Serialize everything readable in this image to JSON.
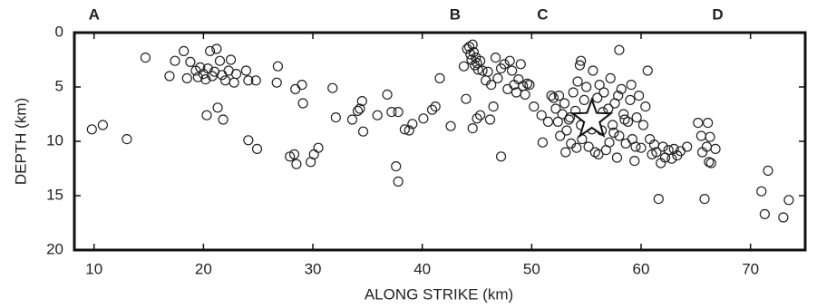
{
  "chart_data": {
    "type": "scatter",
    "xlabel": "ALONG STRIKE (km)",
    "ylabel": "DEPTH (km)",
    "xlim": [
      8.2,
      75
    ],
    "ylim": [
      0,
      20
    ],
    "y_inverted": true,
    "xticks": [
      10,
      20,
      30,
      40,
      50,
      60,
      70
    ],
    "yticks": [
      0,
      5,
      10,
      15,
      20
    ],
    "annotations": [
      {
        "text": "A",
        "x": 10
      },
      {
        "text": "B",
        "x": 43
      },
      {
        "text": "C",
        "x": 51
      },
      {
        "text": "D",
        "x": 67
      }
    ],
    "mainshock": {
      "x": 55.5,
      "y": 8
    },
    "series": [
      {
        "color": "#222222",
        "x": [
          9.8,
          10.8,
          13,
          14.7,
          16.9,
          17.4,
          18.2,
          18.5,
          18.8,
          19.3,
          19.5,
          19.7,
          20,
          20.2,
          20.4,
          20.6,
          20.8,
          21,
          21.2,
          21.5,
          21.7,
          22,
          22.3,
          22.5,
          22.8,
          23,
          20.3,
          21.3,
          21.8,
          23.9,
          24.1,
          24.1,
          24.9,
          24.8,
          26.7,
          26.8,
          27.9,
          28.3,
          28.4,
          28.5,
          29,
          29.1,
          29.8,
          30.1,
          30.5,
          31.8,
          32.1,
          33.6,
          34.1,
          34.3,
          34.5,
          34.6,
          35.9,
          36.8,
          37.2,
          37.6,
          37.8,
          37.8,
          38.4,
          38.8,
          39.1,
          40.1,
          40.9,
          41.2,
          41.6,
          42.6,
          43.8,
          44,
          44.1,
          44.3,
          44.4,
          44.5,
          44.6,
          44.7,
          44.8,
          44.9,
          45,
          45.1,
          45.3,
          45.5,
          44.6,
          45,
          45.3,
          45.8,
          46,
          46.3,
          46.5,
          46.2,
          46.7,
          46.9,
          47.2,
          47.5,
          47.8,
          48,
          48.2,
          48.4,
          48.6,
          48.8,
          49,
          49.2,
          49.4,
          49.6,
          49.8,
          47.2,
          50.2,
          51,
          51.8,
          52,
          52.2,
          52.4,
          52.6,
          52.8,
          53,
          53.2,
          53.4,
          53.6,
          53.8,
          54,
          54.2,
          54.4,
          54.5,
          54.6,
          54.8,
          55,
          55.2,
          55.4,
          55.6,
          55.8,
          56,
          56.2,
          56.4,
          56.6,
          56.8,
          57,
          57.2,
          57.4,
          57.6,
          57.8,
          58,
          58,
          58.2,
          58.4,
          58.6,
          58.8,
          59,
          59.2,
          59.4,
          59.6,
          59.8,
          60,
          60.2,
          60.4,
          60.6,
          60.8,
          61,
          61.2,
          61.4,
          61.6,
          61.8,
          62,
          62.2,
          62.5,
          62.8,
          63,
          63.3,
          63.6,
          64.2,
          52.5,
          53.5,
          54.5,
          55.5,
          56.5,
          57.5,
          58.5,
          59.5,
          53.1,
          54.1,
          56.1,
          57.1,
          51.5,
          50.9,
          59.1,
          57.9,
          65.2,
          65.5,
          65.6,
          65.8,
          66,
          66.1,
          66.3,
          66.4,
          66.8,
          66.2,
          71,
          71.3,
          71.6,
          73,
          73.5
        ],
        "values": [
          8.9,
          8.5,
          9.8,
          2.3,
          4,
          2.6,
          1.7,
          4.2,
          2.7,
          3.5,
          4.1,
          3.2,
          3.8,
          4.3,
          3.3,
          1.7,
          4,
          3.6,
          1.5,
          2.6,
          3.9,
          4.4,
          3.5,
          2.5,
          4.6,
          3.8,
          7.6,
          6.9,
          8,
          3.5,
          4.4,
          9.9,
          10.7,
          4.4,
          4.6,
          3.1,
          11.4,
          11.2,
          5.2,
          12.1,
          4.8,
          6.5,
          11.9,
          11.2,
          10.6,
          5.1,
          7.8,
          8,
          7.2,
          7,
          6.3,
          9.1,
          7.6,
          5.7,
          7.3,
          12.3,
          13.7,
          7.3,
          8.9,
          9,
          8.4,
          7.9,
          7.1,
          6.8,
          4.2,
          8.6,
          3.1,
          6.1,
          1.5,
          1.3,
          2,
          2.5,
          1.1,
          1.8,
          3,
          2.3,
          2.8,
          3.4,
          2.6,
          3.5,
          8.8,
          7.9,
          7.6,
          4.4,
          3.6,
          4.8,
          6.8,
          8,
          2.3,
          4.2,
          3.3,
          2.9,
          5.2,
          2.6,
          3.5,
          4.8,
          5.5,
          4.3,
          2.9,
          4.9,
          5.7,
          4.7,
          4.8,
          11.4,
          6.8,
          10.1,
          5.8,
          6,
          7,
          8.2,
          9.5,
          7.5,
          6.5,
          9,
          8,
          10.2,
          5.5,
          7.2,
          4.5,
          3,
          2.6,
          9.8,
          6.2,
          5,
          10.5,
          7.5,
          3.5,
          11,
          6,
          4.8,
          9,
          5.5,
          10.8,
          7,
          4.2,
          8.5,
          6.5,
          11.5,
          1.6,
          9.5,
          5.2,
          7.5,
          10.2,
          8.2,
          6.2,
          9.8,
          11.8,
          7.8,
          5.8,
          10.6,
          8.5,
          6.8,
          3.5,
          9.8,
          11.2,
          10.3,
          11,
          15.3,
          12,
          10.5,
          11.5,
          10.8,
          11.6,
          10.7,
          11.3,
          10.9,
          10.5,
          5.8,
          7.8,
          8.5,
          8.9,
          7.3,
          9.2,
          8,
          10.5,
          11,
          10.6,
          11.2,
          10.1,
          8.2,
          7.6,
          4.8,
          5.8,
          8.3,
          9.5,
          11,
          15.3,
          10.5,
          8.3,
          9.6,
          12,
          10.7,
          11.9,
          14.6,
          16.7,
          12.7,
          17,
          15.4
        ]
      }
    ]
  }
}
